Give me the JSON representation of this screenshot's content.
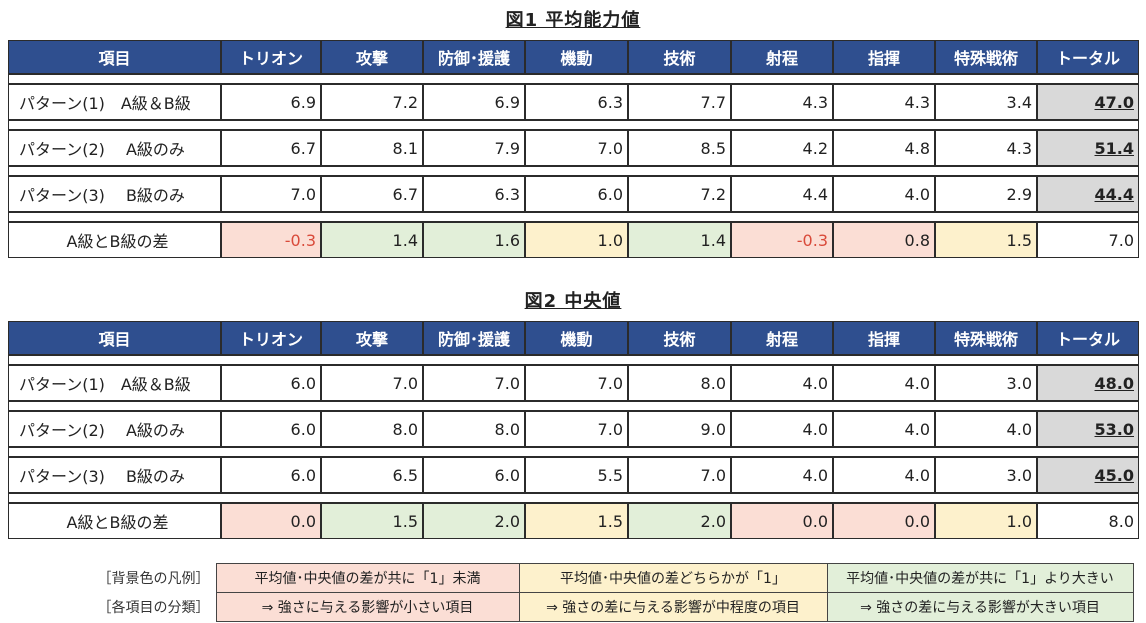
{
  "fig1": {
    "title": "図1 平均能力値",
    "headers": [
      "項目",
      "トリオン",
      "攻撃",
      "防御･援護",
      "機動",
      "技術",
      "射程",
      "指揮",
      "特殊戦術",
      "トータル"
    ],
    "rows": [
      {
        "name": "パターン(1)　A級＆B級",
        "values": [
          "6.9",
          "7.2",
          "6.9",
          "6.3",
          "7.7",
          "4.3",
          "4.3",
          "3.4"
        ],
        "total": "47.0"
      },
      {
        "name": "パターン(2)　 A級のみ",
        "values": [
          "6.7",
          "8.1",
          "7.9",
          "7.0",
          "8.5",
          "4.2",
          "4.8",
          "4.3"
        ],
        "total": "51.4"
      },
      {
        "name": "パターン(3)　 B級のみ",
        "values": [
          "7.0",
          "6.7",
          "6.3",
          "6.0",
          "7.2",
          "4.4",
          "4.0",
          "2.9"
        ],
        "total": "44.4"
      }
    ],
    "diff": {
      "name": "A級とB級の差",
      "values": [
        "-0.3",
        "1.4",
        "1.6",
        "1.0",
        "1.4",
        "-0.3",
        "0.8",
        "1.5"
      ],
      "total": "7.0"
    }
  },
  "fig2": {
    "title": "図2 中央値",
    "headers": [
      "項目",
      "トリオン",
      "攻撃",
      "防御･援護",
      "機動",
      "技術",
      "射程",
      "指揮",
      "特殊戦術",
      "トータル"
    ],
    "rows": [
      {
        "name": "パターン(1)　A級＆B級",
        "values": [
          "6.0",
          "7.0",
          "7.0",
          "7.0",
          "8.0",
          "4.0",
          "4.0",
          "3.0"
        ],
        "total": "48.0"
      },
      {
        "name": "パターン(2)　 A級のみ",
        "values": [
          "6.0",
          "8.0",
          "8.0",
          "7.0",
          "9.0",
          "4.0",
          "4.0",
          "4.0"
        ],
        "total": "53.0"
      },
      {
        "name": "パターン(3)　 B級のみ",
        "values": [
          "6.0",
          "6.5",
          "6.0",
          "5.5",
          "7.0",
          "4.0",
          "4.0",
          "3.0"
        ],
        "total": "45.0"
      }
    ],
    "diff": {
      "name": "A級とB級の差",
      "values": [
        "0.0",
        "1.5",
        "2.0",
        "1.5",
        "2.0",
        "0.0",
        "0.0",
        "1.0"
      ],
      "total": "8.0"
    }
  },
  "legend": {
    "row1_label": "［背景色の凡例］",
    "row2_label": "［各項目の分類］",
    "red_row1": "平均値･中央値の差が共に「1」未満",
    "yel_row1": "平均値･中央値の差どちらかが「1」",
    "grn_row1": "平均値･中央値の差が共に「1」より大きい",
    "red_row2": "⇒ 強さに与える影響が小さい項目",
    "yel_row2": "⇒ 強さの差に与える影響が中程度の項目",
    "grn_row2": "⇒ 強さの差に与える影響が大きい項目"
  },
  "colors": {
    "header": "#2f4f8f",
    "total_cell": "#d9d9d9",
    "low": "#fbded5",
    "mid": "#fdf1cc",
    "high": "#e2efd9"
  },
  "diff_categories": [
    "low",
    "high",
    "high",
    "mid",
    "high",
    "low",
    "low",
    "mid"
  ]
}
